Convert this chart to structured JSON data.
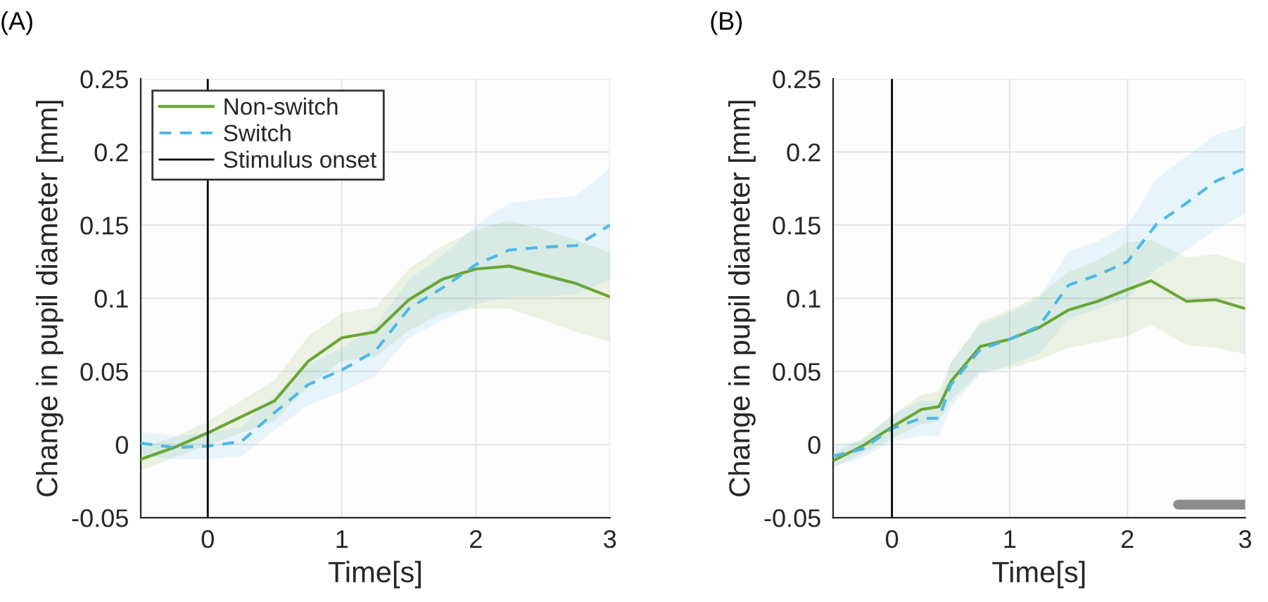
{
  "chart_data": [
    {
      "type": "line",
      "title": "(A)",
      "xlabel": "Time[s]",
      "ylabel": "Change in pupil diameter [mm]",
      "xlim": [
        -0.5,
        3
      ],
      "xticks": [
        0,
        1,
        2,
        3
      ],
      "ylim": [
        -0.05,
        0.25
      ],
      "yticks": [
        -0.05,
        0,
        0.05,
        0.1,
        0.15,
        0.2,
        0.25
      ],
      "grid": true,
      "legend": "top left",
      "series": [
        {
          "name": "Non-switch",
          "color": "#6aa535",
          "line_style": "solid",
          "x": [
            -0.5,
            -0.25,
            0,
            0.25,
            0.5,
            0.75,
            1,
            1.25,
            1.5,
            1.75,
            2,
            2.25,
            2.5,
            2.75,
            3
          ],
          "values": [
            -0.01,
            -0.002,
            0.008,
            0.019,
            0.03,
            0.057,
            0.073,
            0.077,
            0.099,
            0.113,
            0.12,
            0.122,
            0.116,
            0.11,
            0.101
          ],
          "lower": [
            -0.018,
            -0.009,
            0.0,
            0.008,
            0.016,
            0.04,
            0.057,
            0.06,
            0.078,
            0.09,
            0.093,
            0.093,
            0.085,
            0.077,
            0.07
          ],
          "upper": [
            -0.002,
            0.005,
            0.016,
            0.03,
            0.044,
            0.074,
            0.09,
            0.094,
            0.12,
            0.136,
            0.147,
            0.153,
            0.147,
            0.14,
            0.131
          ]
        },
        {
          "name": "Switch",
          "color": "#4db8e8",
          "line_style": "dashed",
          "x": [
            -0.5,
            -0.25,
            0,
            0.25,
            0.5,
            0.75,
            1,
            1.25,
            1.5,
            1.75,
            2,
            2.25,
            2.5,
            2.75,
            3
          ],
          "values": [
            0.001,
            -0.002,
            -0.001,
            0.002,
            0.022,
            0.041,
            0.051,
            0.064,
            0.093,
            0.107,
            0.123,
            0.133,
            0.135,
            0.136,
            0.15
          ],
          "lower": [
            -0.007,
            -0.01,
            -0.01,
            -0.008,
            0.01,
            0.027,
            0.036,
            0.047,
            0.073,
            0.085,
            0.096,
            0.101,
            0.101,
            0.103,
            0.113
          ],
          "upper": [
            0.009,
            0.006,
            0.008,
            0.012,
            0.034,
            0.055,
            0.066,
            0.081,
            0.113,
            0.129,
            0.15,
            0.165,
            0.168,
            0.17,
            0.189
          ]
        }
      ],
      "ref_lines": [
        {
          "axis": "x",
          "value": 0,
          "label": "Stimulus onset",
          "color": "#000000"
        }
      ]
    },
    {
      "type": "line",
      "title": "(B)",
      "xlabel": "Time[s]",
      "ylabel": "Change in pupil diameter [mm]",
      "xlim": [
        -0.5,
        3
      ],
      "xticks": [
        0,
        1,
        2,
        3
      ],
      "ylim": [
        -0.05,
        0.25
      ],
      "yticks": [
        -0.05,
        0,
        0.05,
        0.1,
        0.15,
        0.2,
        0.25
      ],
      "grid": true,
      "series": [
        {
          "color": "#6aa535",
          "line_style": "solid",
          "x": [
            -0.5,
            -0.25,
            0,
            0.25,
            0.4,
            0.5,
            0.75,
            1,
            1.25,
            1.5,
            1.75,
            2,
            2.2,
            2.5,
            2.75,
            3
          ],
          "values": [
            -0.011,
            -0.001,
            0.012,
            0.024,
            0.026,
            0.043,
            0.067,
            0.072,
            0.08,
            0.092,
            0.098,
            0.106,
            0.112,
            0.098,
            0.099,
            0.093
          ],
          "lower": [
            -0.016,
            -0.006,
            0.004,
            0.014,
            0.016,
            0.03,
            0.05,
            0.052,
            0.058,
            0.066,
            0.07,
            0.074,
            0.082,
            0.068,
            0.066,
            0.062
          ],
          "upper": [
            -0.006,
            0.004,
            0.02,
            0.034,
            0.037,
            0.056,
            0.084,
            0.092,
            0.102,
            0.118,
            0.126,
            0.138,
            0.14,
            0.128,
            0.13,
            0.124
          ]
        },
        {
          "color": "#4db8e8",
          "line_style": "dashed",
          "x": [
            -0.5,
            -0.25,
            0,
            0.25,
            0.4,
            0.5,
            0.75,
            1,
            1.25,
            1.5,
            1.75,
            2,
            2.25,
            2.5,
            2.75,
            3
          ],
          "values": [
            -0.008,
            -0.003,
            0.011,
            0.018,
            0.018,
            0.041,
            0.065,
            0.072,
            0.081,
            0.109,
            0.116,
            0.125,
            0.151,
            0.165,
            0.18,
            0.189
          ],
          "lower": [
            -0.015,
            -0.009,
            0.002,
            0.006,
            0.006,
            0.026,
            0.048,
            0.054,
            0.062,
            0.086,
            0.093,
            0.1,
            0.12,
            0.133,
            0.147,
            0.158
          ],
          "upper": [
            -0.001,
            0.003,
            0.02,
            0.03,
            0.03,
            0.056,
            0.082,
            0.09,
            0.1,
            0.132,
            0.139,
            0.15,
            0.182,
            0.197,
            0.212,
            0.218
          ]
        },
        {
          "color": "#8c8c8c",
          "line_style": "solid",
          "x": [
            2.43,
            3
          ],
          "values": [
            -0.041,
            -0.041
          ]
        }
      ],
      "ref_lines": [
        {
          "axis": "x",
          "value": 0,
          "label": null,
          "color": "#000000"
        }
      ]
    }
  ]
}
